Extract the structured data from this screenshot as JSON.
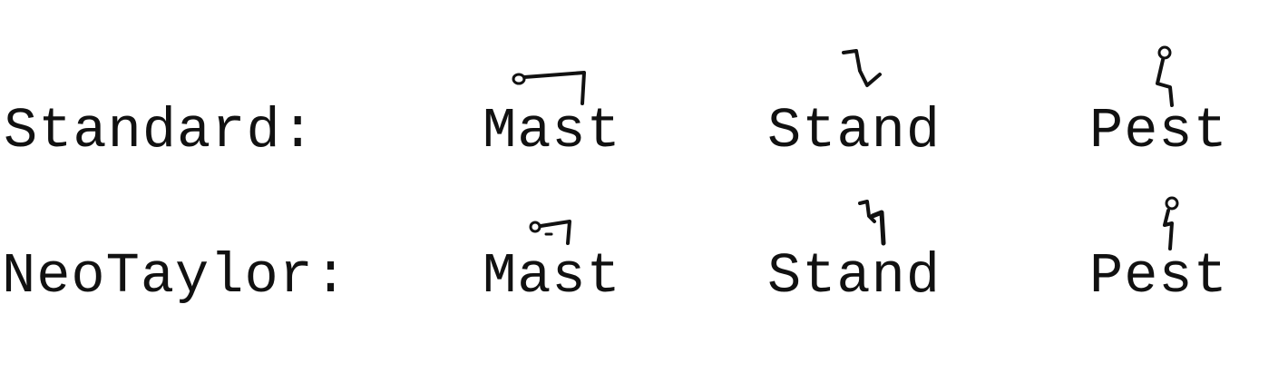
{
  "rows": [
    {
      "label": "Standard:",
      "words": [
        "Mast",
        "Stand",
        "Pest"
      ]
    },
    {
      "label": "NeoTaylor:",
      "words": [
        "Mast",
        "Stand",
        "Pest"
      ]
    }
  ],
  "ink_color": "#111111",
  "glyph_style": "handwritten shorthand outline above each word"
}
